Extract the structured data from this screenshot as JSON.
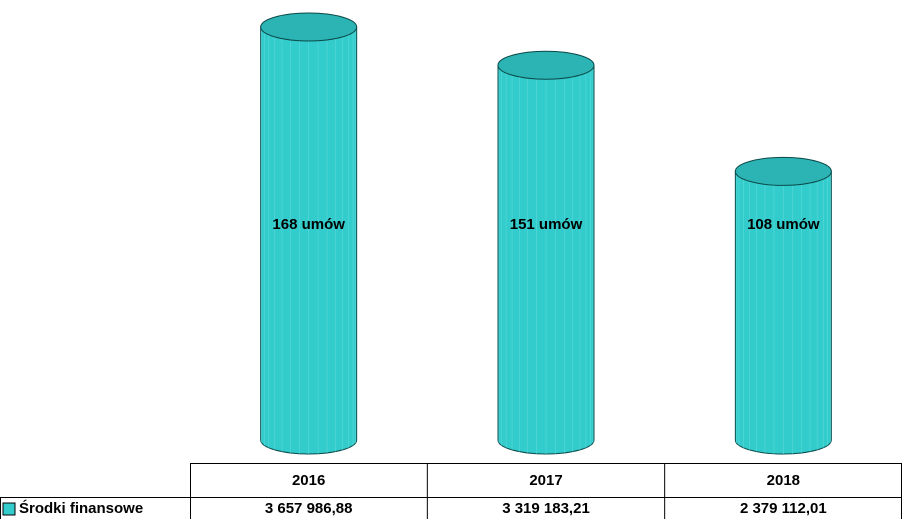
{
  "chart_data": {
    "type": "bar",
    "categories": [
      "2016",
      "2017",
      "2018"
    ],
    "series": [
      {
        "name": "Środki finansowe",
        "color": "#33cccc",
        "values": [
          3657986.88,
          3319183.21,
          2379112.01
        ],
        "value_labels": [
          "3 657 986,88",
          "3 319 183,21",
          "2 379 112,01"
        ]
      }
    ],
    "annotations": [
      "168 umów",
      "151 umów",
      "108 umów"
    ]
  }
}
